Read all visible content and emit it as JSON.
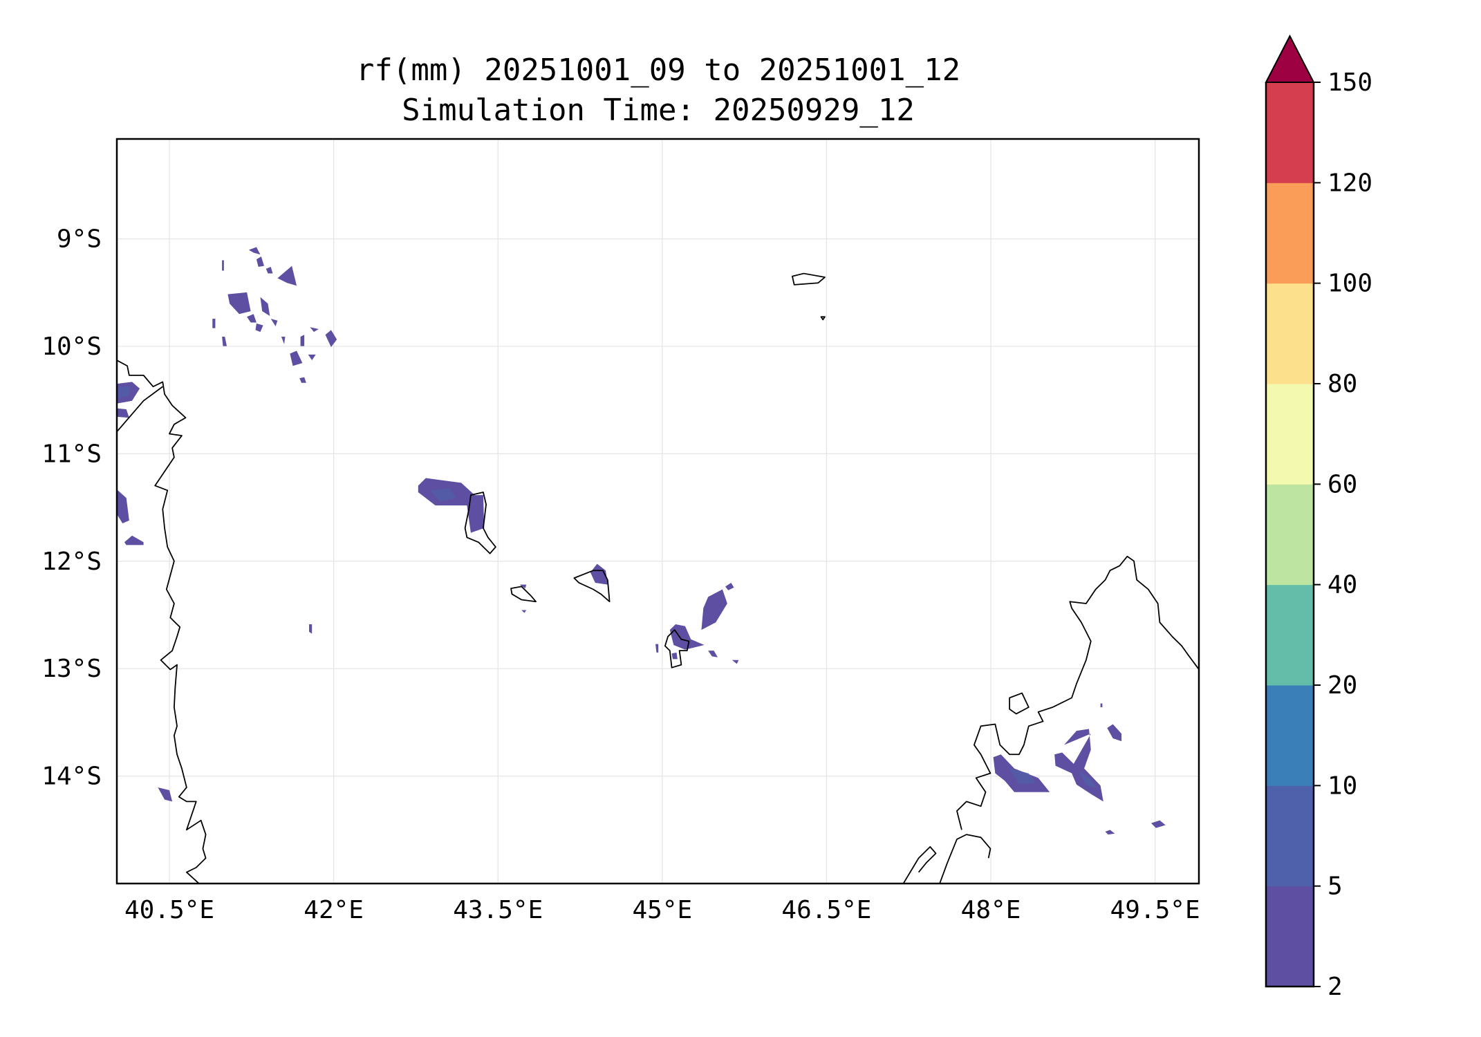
{
  "title_line1": "rf(mm) 20251001_09 to 20251001_12",
  "title_line2": "Simulation Time: 20250929_12",
  "chart_data": {
    "type": "heatmap",
    "subtype": "filled-contour map",
    "variable": "rf(mm)",
    "title": "rf(mm) 20251001_09 to 20251001_12",
    "subtitle": "Simulation Time: 20250929_12",
    "xlim": [
      40.02,
      49.9
    ],
    "ylim": [
      -15.0,
      -8.07
    ],
    "grid": true,
    "x_ticks": [
      40.5,
      42,
      43.5,
      45,
      46.5,
      48,
      49.5
    ],
    "x_tick_labels": [
      "40.5°E",
      "42°E",
      "43.5°E",
      "45°E",
      "46.5°E",
      "48°E",
      "49.5°E"
    ],
    "y_ticks": [
      -9,
      -10,
      -11,
      -12,
      -13,
      -14
    ],
    "y_tick_labels": [
      "9°S",
      "10°S",
      "11°S",
      "12°S",
      "13°S",
      "14°S"
    ],
    "colorbar": {
      "levels": [
        2,
        5,
        10,
        20,
        40,
        60,
        80,
        100,
        120,
        150
      ],
      "tick_labels": [
        "2",
        "5",
        "10",
        "20",
        "40",
        "60",
        "80",
        "100",
        "120",
        "150"
      ],
      "colors": [
        "#5e4fa2",
        "#4f61aa",
        "#3a7fb8",
        "#63bda8",
        "#bde4a0",
        "#f3f9ae",
        "#fde08b",
        "#f99d59",
        "#d53e4f"
      ],
      "extend_max_color": "#9e0142",
      "placement": "right"
    },
    "features": "coastlines of northern Mozambique/Tanzania (west), Comoros and Mayotte (centre), northern Madagascar (south-east); scattered light rainfall 2-10 mm"
  }
}
